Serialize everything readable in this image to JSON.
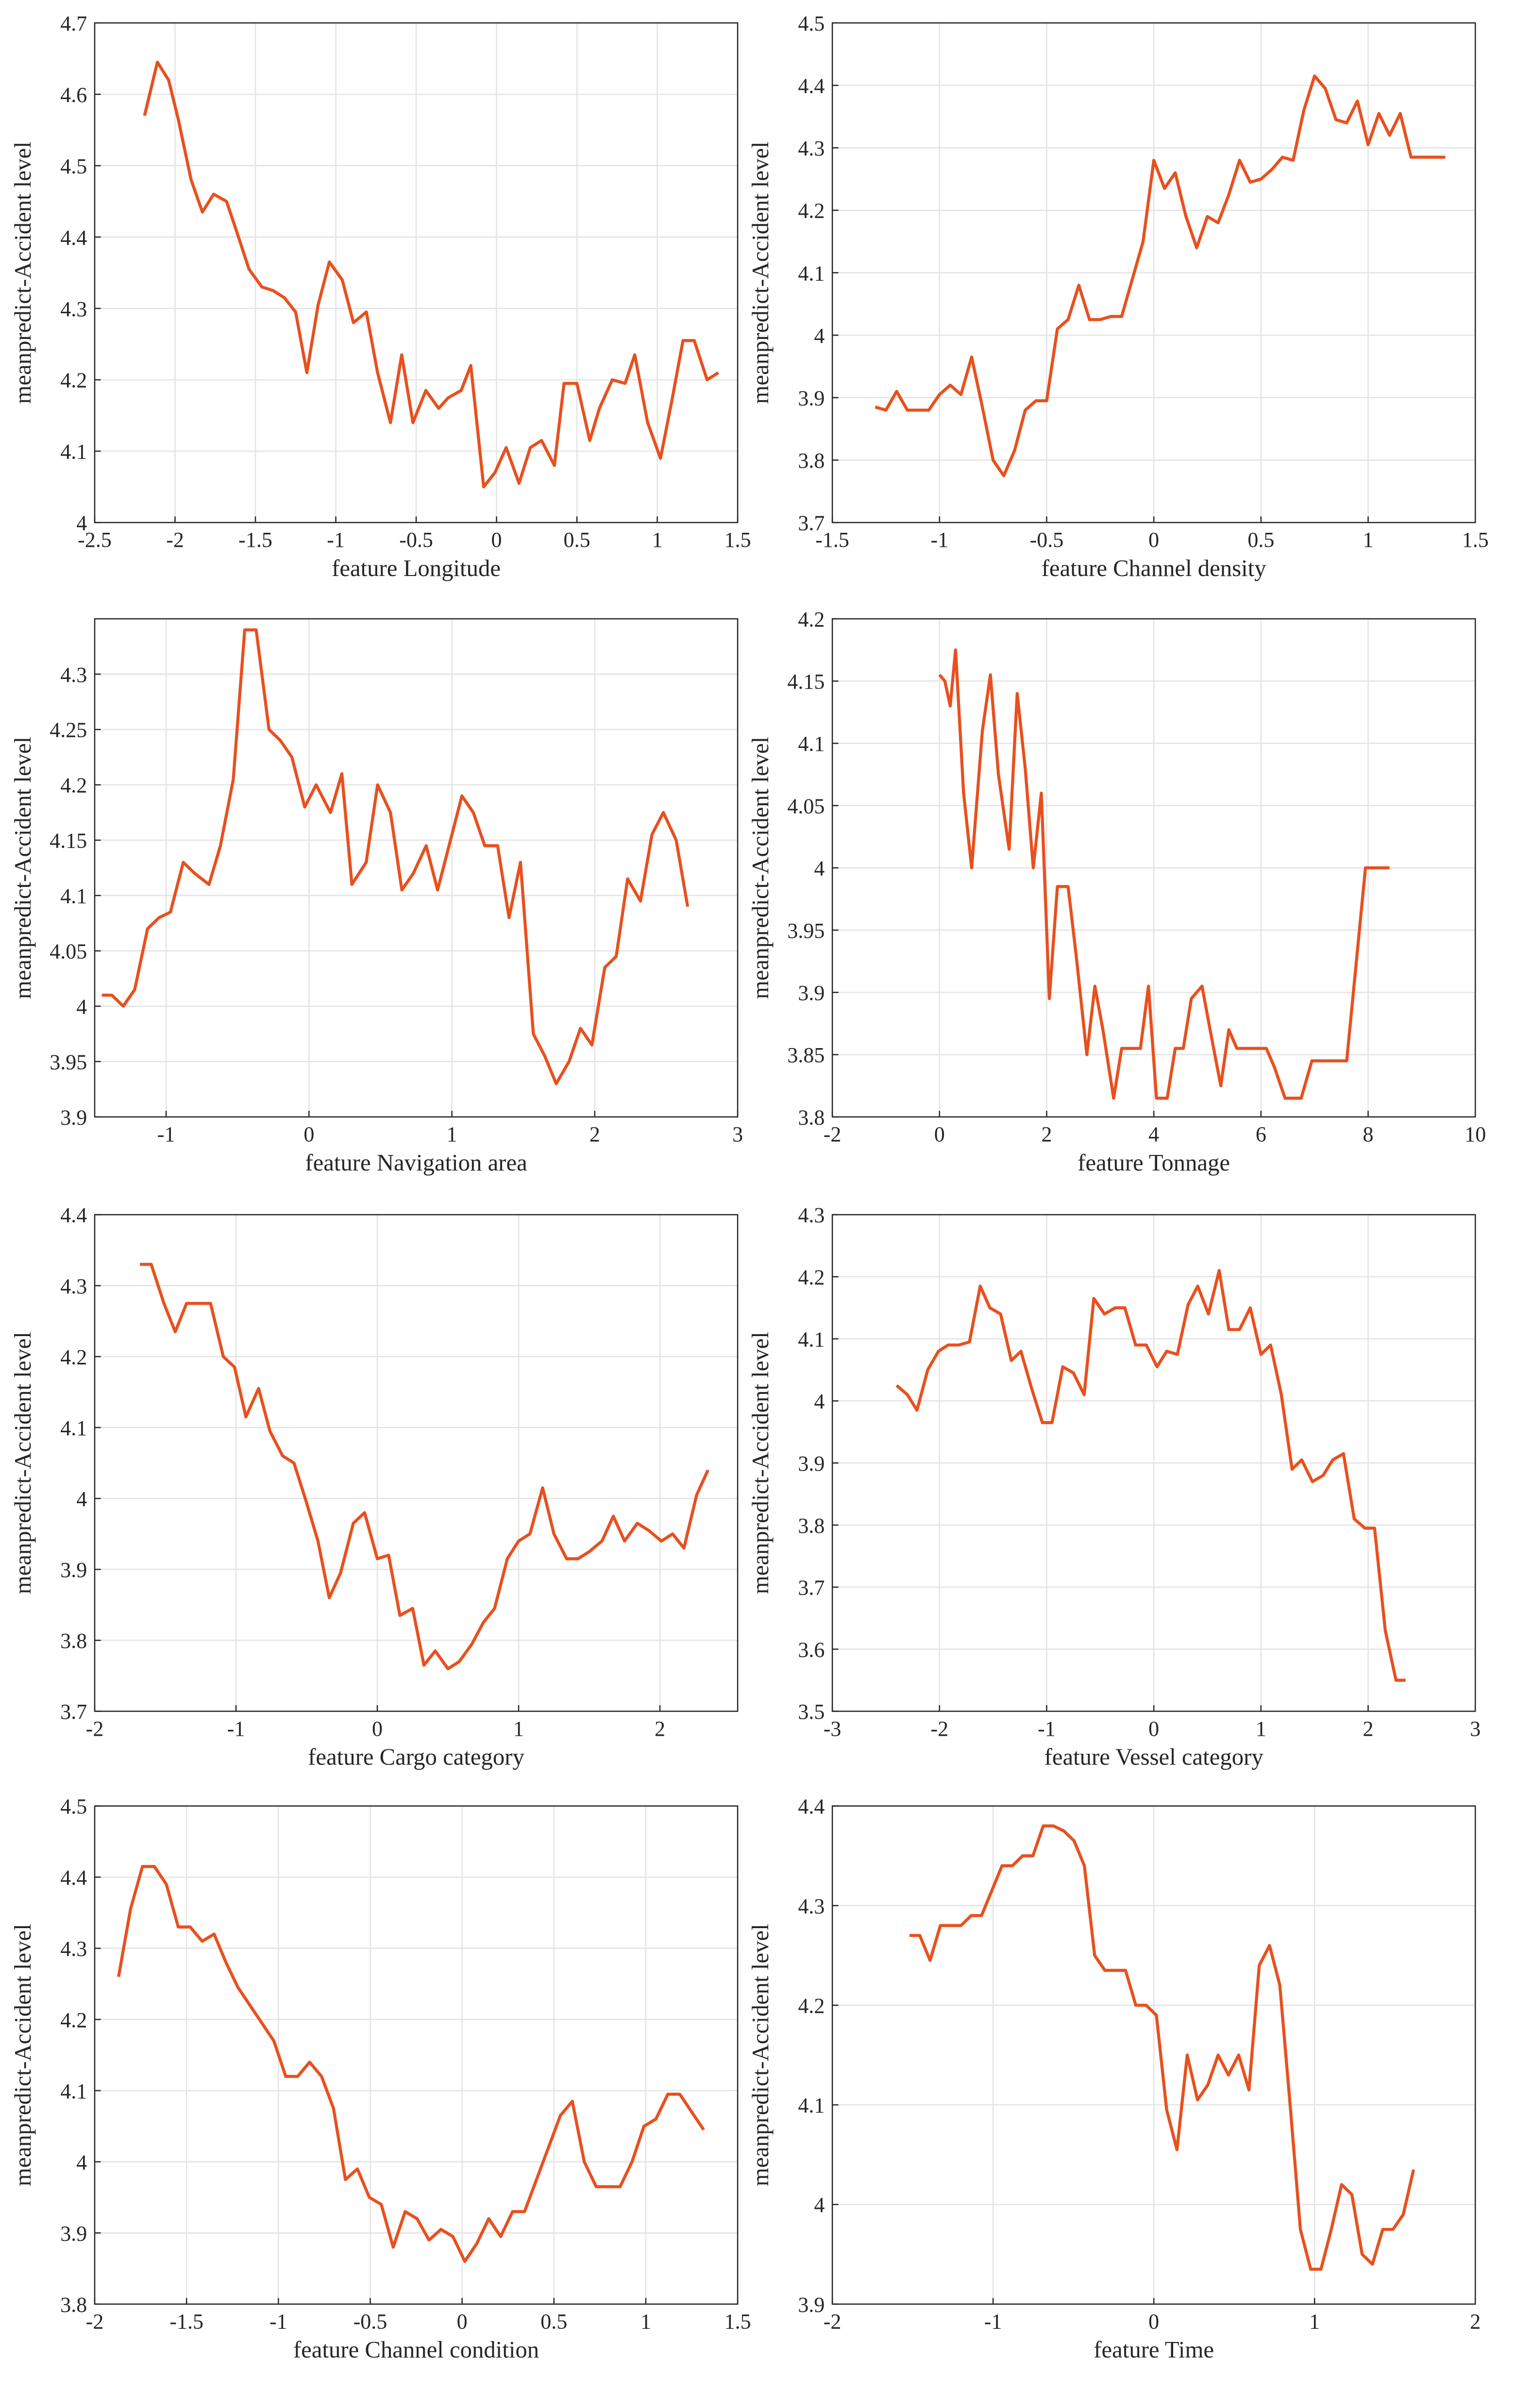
{
  "chart_data": [
    {
      "type": "line",
      "xlabel": "feature Longitude",
      "ylabel": "meanpredict-Accident level",
      "color": "#e8501e",
      "grid": true,
      "xlim": [
        -2.5,
        1.5
      ],
      "xticks": [
        -2.5,
        -2,
        -1.5,
        -1,
        -0.5,
        0,
        0.5,
        1,
        1.5
      ],
      "ylim": [
        4,
        4.7
      ],
      "yticks": [
        4,
        4.1,
        4.2,
        4.3,
        4.4,
        4.5,
        4.6,
        4.7
      ],
      "x": [
        -2.19,
        -2.11,
        -2.04,
        -1.98,
        -1.9,
        -1.83,
        -1.76,
        -1.68,
        -1.62,
        -1.54,
        -1.46,
        -1.39,
        -1.32,
        -1.25,
        -1.18,
        -1.11,
        -1.04,
        -0.96,
        -0.89,
        -0.81,
        -0.74,
        -0.66,
        -0.59,
        -0.52,
        -0.44,
        -0.36,
        -0.3,
        -0.22,
        -0.16,
        -0.08,
        -0.01,
        0.06,
        0.14,
        0.21,
        0.28,
        0.36,
        0.42,
        0.5,
        0.58,
        0.64,
        0.72,
        0.8,
        0.86,
        0.94,
        1.02,
        1.09,
        1.16,
        1.23,
        1.31,
        1.38
      ],
      "values": [
        4.57,
        4.645,
        4.62,
        4.565,
        4.48,
        4.435,
        4.46,
        4.45,
        4.41,
        4.355,
        4.33,
        4.325,
        4.315,
        4.295,
        4.21,
        4.305,
        4.365,
        4.34,
        4.28,
        4.295,
        4.21,
        4.14,
        4.235,
        4.14,
        4.185,
        4.16,
        4.175,
        4.185,
        4.22,
        4.05,
        4.07,
        4.105,
        4.055,
        4.105,
        4.115,
        4.08,
        4.195,
        4.195,
        4.115,
        4.16,
        4.2,
        4.195,
        4.235,
        4.14,
        4.09,
        4.17,
        4.255,
        4.255,
        4.2,
        4.21
      ]
    },
    {
      "type": "line",
      "xlabel": "feature Channel density",
      "ylabel": "meanpredict-Accident level",
      "color": "#e8501e",
      "grid": true,
      "xlim": [
        -1.5,
        1.5
      ],
      "xticks": [
        -1.5,
        -1,
        -0.5,
        0,
        0.5,
        1,
        1.5
      ],
      "ylim": [
        3.7,
        4.5
      ],
      "yticks": [
        3.7,
        3.8,
        3.9,
        4,
        4.1,
        4.2,
        4.3,
        4.4,
        4.5
      ],
      "x": [
        -1.3,
        -1.25,
        -1.2,
        -1.15,
        -1.1,
        -1.05,
        -1.0,
        -0.95,
        -0.9,
        -0.85,
        -0.8,
        -0.75,
        -0.7,
        -0.65,
        -0.6,
        -0.55,
        -0.5,
        -0.45,
        -0.4,
        -0.35,
        -0.3,
        -0.25,
        -0.2,
        -0.15,
        -0.05,
        0,
        0.05,
        0.1,
        0.15,
        0.2,
        0.25,
        0.3,
        0.35,
        0.4,
        0.45,
        0.5,
        0.55,
        0.6,
        0.65,
        0.7,
        0.75,
        0.8,
        0.85,
        0.9,
        0.95,
        1.0,
        1.05,
        1.1,
        1.15,
        1.2,
        1.36
      ],
      "values": [
        3.885,
        3.88,
        3.91,
        3.88,
        3.88,
        3.88,
        3.905,
        3.92,
        3.905,
        3.965,
        3.885,
        3.8,
        3.775,
        3.815,
        3.88,
        3.895,
        3.895,
        4.01,
        4.025,
        4.08,
        4.025,
        4.025,
        4.03,
        4.03,
        4.15,
        4.28,
        4.235,
        4.26,
        4.19,
        4.14,
        4.19,
        4.18,
        4.225,
        4.28,
        4.245,
        4.25,
        4.265,
        4.285,
        4.28,
        4.36,
        4.415,
        4.395,
        4.345,
        4.34,
        4.375,
        4.305,
        4.355,
        4.32,
        4.355,
        4.285,
        4.285
      ]
    },
    {
      "type": "line",
      "xlabel": "feature Navigation area",
      "ylabel": "meanpredict-Accident level",
      "color": "#e8501e",
      "grid": true,
      "xlim": [
        -1.5,
        3
      ],
      "xticks": [
        -1,
        0,
        1,
        2,
        3
      ],
      "ylim": [
        3.9,
        4.35
      ],
      "yticks": [
        3.9,
        3.95,
        4,
        4.05,
        4.1,
        4.15,
        4.2,
        4.25,
        4.3
      ],
      "x": [
        -1.45,
        -1.38,
        -1.3,
        -1.22,
        -1.13,
        -1.05,
        -0.97,
        -0.88,
        -0.8,
        -0.7,
        -0.62,
        -0.53,
        -0.45,
        -0.37,
        -0.28,
        -0.2,
        -0.12,
        -0.03,
        0.05,
        0.15,
        0.23,
        0.3,
        0.4,
        0.48,
        0.57,
        0.65,
        0.73,
        0.82,
        0.9,
        0.98,
        1.07,
        1.15,
        1.23,
        1.32,
        1.4,
        1.48,
        1.57,
        1.65,
        1.73,
        1.82,
        1.9,
        1.98,
        2.07,
        2.15,
        2.23,
        2.32,
        2.4,
        2.48,
        2.57,
        2.65
      ],
      "values": [
        4.01,
        4.01,
        4.0,
        4.015,
        4.07,
        4.08,
        4.085,
        4.13,
        4.12,
        4.11,
        4.145,
        4.205,
        4.34,
        4.34,
        4.25,
        4.24,
        4.225,
        4.18,
        4.2,
        4.175,
        4.21,
        4.11,
        4.13,
        4.2,
        4.175,
        4.105,
        4.12,
        4.145,
        4.105,
        4.145,
        4.19,
        4.175,
        4.145,
        4.145,
        4.08,
        4.13,
        3.975,
        3.955,
        3.93,
        3.95,
        3.98,
        3.965,
        4.035,
        4.045,
        4.115,
        4.095,
        4.155,
        4.175,
        4.15,
        4.09
      ]
    },
    {
      "type": "line",
      "xlabel": "feature Tonnage",
      "ylabel": "meanpredict-Accident level",
      "color": "#e8501e",
      "grid": true,
      "xlim": [
        -2,
        10
      ],
      "xticks": [
        -2,
        0,
        2,
        4,
        6,
        8,
        10
      ],
      "ylim": [
        3.8,
        4.2
      ],
      "yticks": [
        3.8,
        3.85,
        3.9,
        3.95,
        4,
        4.05,
        4.1,
        4.15,
        4.2
      ],
      "x": [
        0,
        0.1,
        0.2,
        0.3,
        0.45,
        0.6,
        0.8,
        0.95,
        1.1,
        1.3,
        1.45,
        1.6,
        1.75,
        1.9,
        2.05,
        2.2,
        2.4,
        2.55,
        2.75,
        2.9,
        3.05,
        3.25,
        3.4,
        3.55,
        3.75,
        3.9,
        4.05,
        4.25,
        4.4,
        4.55,
        4.7,
        4.9,
        5.05,
        5.25,
        5.4,
        5.55,
        5.75,
        5.9,
        6.1,
        6.25,
        6.45,
        6.75,
        6.95,
        7.6,
        7.95,
        8.4
      ],
      "values": [
        4.155,
        4.15,
        4.13,
        4.175,
        4.06,
        4.0,
        4.11,
        4.155,
        4.075,
        4.015,
        4.14,
        4.08,
        4.0,
        4.06,
        3.895,
        3.985,
        3.985,
        3.93,
        3.85,
        3.905,
        3.87,
        3.815,
        3.855,
        3.855,
        3.855,
        3.905,
        3.815,
        3.815,
        3.855,
        3.855,
        3.895,
        3.905,
        3.87,
        3.825,
        3.87,
        3.855,
        3.855,
        3.855,
        3.855,
        3.84,
        3.815,
        3.815,
        3.845,
        3.845,
        4.0,
        4.0
      ]
    },
    {
      "type": "line",
      "xlabel": "feature Cargo category",
      "ylabel": "meanpredict-Accident level",
      "color": "#e8501e",
      "grid": true,
      "xlim": [
        -2,
        2.55
      ],
      "xticks": [
        -2,
        -1,
        0,
        1,
        2
      ],
      "ylim": [
        3.7,
        4.4
      ],
      "yticks": [
        3.7,
        3.8,
        3.9,
        4,
        4.1,
        4.2,
        4.3,
        4.4
      ],
      "x": [
        -1.68,
        -1.6,
        -1.51,
        -1.43,
        -1.35,
        -1.26,
        -1.18,
        -1.09,
        -1.01,
        -0.93,
        -0.84,
        -0.76,
        -0.67,
        -0.59,
        -0.51,
        -0.42,
        -0.34,
        -0.26,
        -0.17,
        -0.09,
        0,
        0.08,
        0.16,
        0.25,
        0.33,
        0.41,
        0.5,
        0.58,
        0.67,
        0.75,
        0.83,
        0.92,
        1.0,
        1.08,
        1.17,
        1.25,
        1.34,
        1.42,
        1.5,
        1.59,
        1.67,
        1.75,
        1.84,
        1.92,
        2.01,
        2.09,
        2.17,
        2.26,
        2.34
      ],
      "values": [
        4.33,
        4.33,
        4.275,
        4.235,
        4.275,
        4.275,
        4.275,
        4.2,
        4.185,
        4.115,
        4.155,
        4.095,
        4.06,
        4.05,
        4.0,
        3.94,
        3.86,
        3.895,
        3.965,
        3.98,
        3.915,
        3.92,
        3.835,
        3.845,
        3.765,
        3.785,
        3.76,
        3.77,
        3.795,
        3.825,
        3.845,
        3.915,
        3.94,
        3.95,
        4.015,
        3.95,
        3.915,
        3.915,
        3.925,
        3.94,
        3.975,
        3.94,
        3.965,
        3.955,
        3.94,
        3.95,
        3.93,
        4.005,
        4.04
      ]
    },
    {
      "type": "line",
      "xlabel": "feature Vessel category",
      "ylabel": "meanpredict-Accident level",
      "color": "#e8501e",
      "grid": true,
      "xlim": [
        -3,
        3
      ],
      "xticks": [
        -3,
        -2,
        -1,
        0,
        1,
        2,
        3
      ],
      "ylim": [
        3.5,
        4.3
      ],
      "yticks": [
        3.5,
        3.6,
        3.7,
        3.8,
        3.9,
        4,
        4.1,
        4.2,
        4.3
      ],
      "x": [
        -2.4,
        -2.3,
        -2.21,
        -2.11,
        -2.01,
        -1.92,
        -1.82,
        -1.72,
        -1.62,
        -1.53,
        -1.43,
        -1.33,
        -1.24,
        -1.14,
        -1.04,
        -0.95,
        -0.85,
        -0.75,
        -0.65,
        -0.56,
        -0.46,
        -0.36,
        -0.27,
        -0.17,
        -0.07,
        0.03,
        0.12,
        0.22,
        0.32,
        0.41,
        0.51,
        0.61,
        0.7,
        0.8,
        0.9,
        1.0,
        1.09,
        1.19,
        1.29,
        1.38,
        1.48,
        1.58,
        1.67,
        1.77,
        1.87,
        1.97,
        2.06,
        2.16,
        2.26,
        2.35
      ],
      "values": [
        4.025,
        4.01,
        3.985,
        4.05,
        4.08,
        4.09,
        4.09,
        4.095,
        4.185,
        4.15,
        4.14,
        4.065,
        4.08,
        4.02,
        3.965,
        3.965,
        4.055,
        4.045,
        4.01,
        4.165,
        4.14,
        4.15,
        4.15,
        4.09,
        4.09,
        4.055,
        4.08,
        4.075,
        4.155,
        4.185,
        4.14,
        4.21,
        4.115,
        4.115,
        4.15,
        4.075,
        4.09,
        4.01,
        3.89,
        3.905,
        3.87,
        3.88,
        3.905,
        3.915,
        3.81,
        3.795,
        3.795,
        3.63,
        3.55,
        3.55
      ]
    },
    {
      "type": "line",
      "xlabel": "feature Channel condition",
      "ylabel": "meanpredict-Accident level",
      "color": "#e8501e",
      "grid": true,
      "xlim": [
        -2,
        1.5
      ],
      "xticks": [
        -2,
        -1.5,
        -1,
        -0.5,
        0,
        0.5,
        1,
        1.5
      ],
      "ylim": [
        3.8,
        4.5
      ],
      "yticks": [
        3.8,
        3.9,
        4,
        4.1,
        4.2,
        4.3,
        4.4,
        4.5
      ],
      "x": [
        -1.87,
        -1.805,
        -1.74,
        -1.675,
        -1.61,
        -1.545,
        -1.48,
        -1.415,
        -1.35,
        -1.285,
        -1.22,
        -1.155,
        -1.09,
        -1.025,
        -0.96,
        -0.895,
        -0.83,
        -0.765,
        -0.7,
        -0.635,
        -0.57,
        -0.505,
        -0.44,
        -0.375,
        -0.31,
        -0.245,
        -0.18,
        -0.115,
        -0.05,
        0.015,
        0.08,
        0.145,
        0.21,
        0.275,
        0.34,
        0.405,
        0.47,
        0.535,
        0.6,
        0.665,
        0.73,
        0.795,
        0.86,
        0.925,
        0.99,
        1.055,
        1.12,
        1.185,
        1.25,
        1.315
      ],
      "values": [
        4.26,
        4.355,
        4.415,
        4.415,
        4.39,
        4.33,
        4.33,
        4.31,
        4.32,
        4.28,
        4.245,
        4.22,
        4.195,
        4.17,
        4.12,
        4.12,
        4.14,
        4.12,
        4.075,
        3.975,
        3.99,
        3.95,
        3.94,
        3.88,
        3.93,
        3.92,
        3.89,
        3.905,
        3.895,
        3.86,
        3.885,
        3.92,
        3.895,
        3.93,
        3.93,
        3.975,
        4.02,
        4.065,
        4.085,
        4.0,
        3.965,
        3.965,
        3.965,
        4.0,
        4.05,
        4.06,
        4.095,
        4.095,
        4.07,
        4.045
      ]
    },
    {
      "type": "line",
      "xlabel": "feature Time",
      "ylabel": "meanpredict-Accident level",
      "color": "#e8501e",
      "grid": true,
      "xlim": [
        -2,
        2
      ],
      "xticks": [
        -2,
        -1,
        0,
        1,
        2
      ],
      "ylim": [
        3.9,
        4.4
      ],
      "yticks": [
        3.9,
        4,
        4.1,
        4.2,
        4.3,
        4.4
      ],
      "x": [
        -1.52,
        -1.456,
        -1.392,
        -1.328,
        -1.264,
        -1.2,
        -1.136,
        -1.072,
        -1.008,
        -0.944,
        -0.88,
        -0.816,
        -0.752,
        -0.688,
        -0.624,
        -0.56,
        -0.496,
        -0.432,
        -0.368,
        -0.304,
        -0.24,
        -0.176,
        -0.112,
        -0.048,
        0.016,
        0.08,
        0.144,
        0.208,
        0.272,
        0.336,
        0.4,
        0.464,
        0.528,
        0.592,
        0.656,
        0.72,
        0.784,
        0.848,
        0.912,
        0.976,
        1.04,
        1.104,
        1.168,
        1.232,
        1.296,
        1.36,
        1.424,
        1.488,
        1.552,
        1.616
      ],
      "values": [
        4.27,
        4.27,
        4.245,
        4.28,
        4.28,
        4.28,
        4.29,
        4.29,
        4.315,
        4.34,
        4.34,
        4.35,
        4.35,
        4.38,
        4.38,
        4.375,
        4.365,
        4.34,
        4.25,
        4.235,
        4.235,
        4.235,
        4.2,
        4.2,
        4.19,
        4.095,
        4.055,
        4.15,
        4.105,
        4.12,
        4.15,
        4.13,
        4.15,
        4.115,
        4.24,
        4.26,
        4.22,
        4.1,
        3.975,
        3.935,
        3.935,
        3.975,
        4.02,
        4.01,
        3.95,
        3.94,
        3.975,
        3.975,
        3.99,
        4.035
      ]
    }
  ]
}
